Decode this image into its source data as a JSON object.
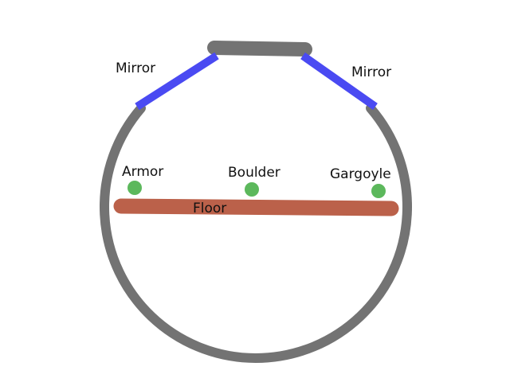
{
  "labels": {
    "mirror_left": "Mirror",
    "mirror_right": "Mirror",
    "armor": "Armor",
    "boulder": "Boulder",
    "gargoyle": "Gargoyle",
    "floor": "Floor"
  },
  "colors": {
    "wall": "#737373",
    "mirror": "#4a4af2",
    "floor": "#bb614a",
    "object": "#5cb85c",
    "text": "#111111",
    "background": "#ffffff"
  }
}
